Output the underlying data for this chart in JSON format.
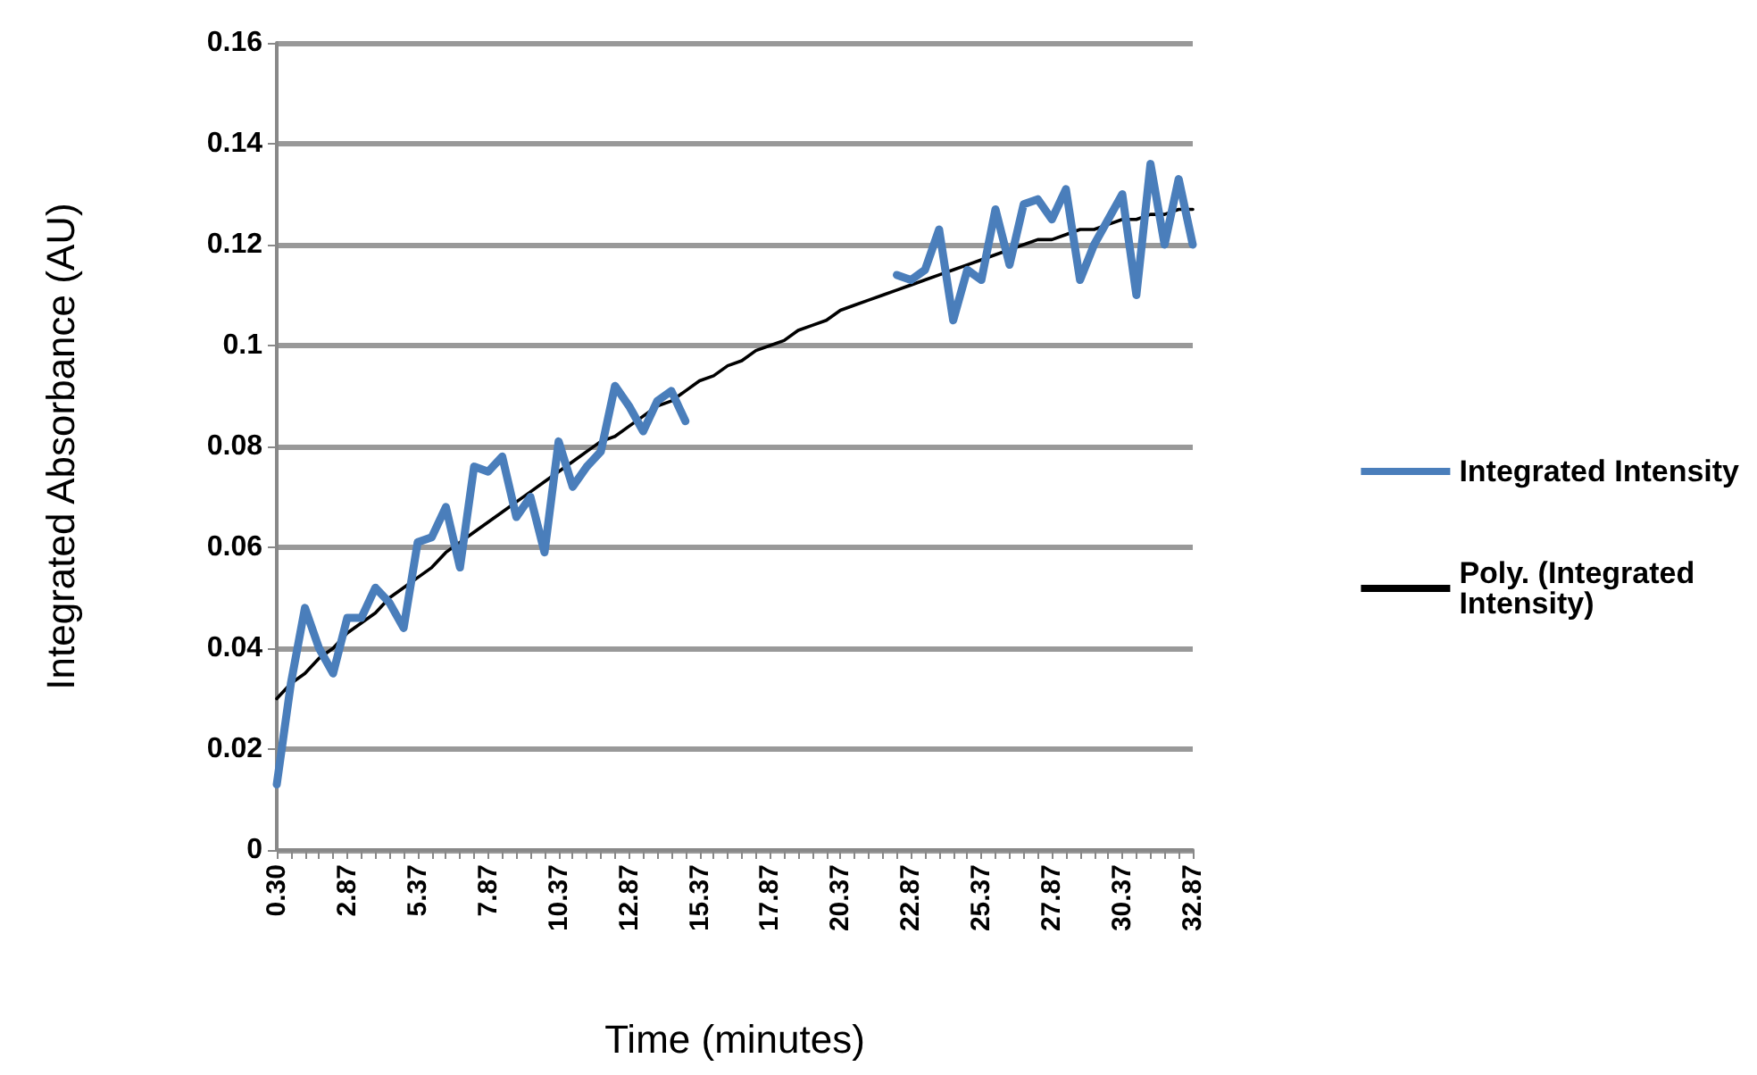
{
  "chart_data": {
    "type": "line",
    "xlabel": "Time (minutes)",
    "ylabel": "Integrated Absorbance (AU)",
    "categories": [
      "0.30",
      null,
      null,
      null,
      null,
      "2.87",
      null,
      null,
      null,
      null,
      "5.37",
      null,
      null,
      null,
      null,
      "7.87",
      null,
      null,
      null,
      null,
      "10.37",
      null,
      null,
      null,
      null,
      "12.87",
      null,
      null,
      null,
      null,
      "15.37",
      null,
      null,
      null,
      null,
      "17.87",
      null,
      null,
      null,
      null,
      "20.37",
      null,
      null,
      null,
      null,
      "22.87",
      null,
      null,
      null,
      null,
      "25.37",
      null,
      null,
      null,
      null,
      "27.87",
      null,
      null,
      null,
      null,
      "30.37",
      null,
      null,
      null,
      null,
      "32.87"
    ],
    "series": [
      {
        "name": "Integrated Intensity",
        "color": "#4a7ebb",
        "values": [
          0.013,
          0.033,
          0.048,
          0.04,
          0.035,
          0.046,
          0.046,
          0.052,
          0.049,
          0.044,
          0.061,
          0.062,
          0.068,
          0.056,
          0.076,
          0.075,
          0.078,
          0.066,
          0.07,
          0.059,
          0.081,
          0.072,
          0.076,
          0.079,
          0.092,
          0.088,
          0.083,
          0.089,
          0.091,
          0.085,
          null,
          null,
          null,
          null,
          null,
          null,
          null,
          null,
          null,
          null,
          null,
          null,
          null,
          null,
          0.114,
          0.113,
          0.115,
          0.123,
          0.105,
          0.115,
          0.113,
          0.127,
          0.116,
          0.128,
          0.129,
          0.125,
          0.131,
          0.113,
          0.12,
          0.125,
          0.13,
          0.11,
          0.136,
          0.12,
          0.133,
          0.12
        ]
      },
      {
        "name": "Poly. (Integrated Intensity)",
        "color": "#000000",
        "values": [
          0.03,
          0.033,
          0.035,
          0.038,
          0.04,
          0.043,
          0.045,
          0.047,
          0.05,
          0.052,
          0.054,
          0.056,
          0.059,
          0.061,
          0.063,
          0.065,
          0.067,
          0.069,
          0.071,
          0.073,
          0.075,
          0.077,
          0.079,
          0.081,
          0.082,
          0.084,
          0.086,
          0.088,
          0.089,
          0.091,
          0.093,
          0.094,
          0.096,
          0.097,
          0.099,
          0.1,
          0.101,
          0.103,
          0.104,
          0.105,
          0.107,
          0.108,
          0.109,
          0.11,
          0.111,
          0.112,
          0.113,
          0.114,
          0.115,
          0.116,
          0.117,
          0.118,
          0.119,
          0.12,
          0.121,
          0.121,
          0.122,
          0.123,
          0.123,
          0.124,
          0.125,
          0.125,
          0.126,
          0.126,
          0.127,
          0.127
        ]
      }
    ],
    "ylim": [
      0,
      0.16
    ],
    "yticks": [
      0,
      0.02,
      0.04,
      0.06,
      0.08,
      0.1,
      0.12,
      0.14,
      0.16
    ],
    "grid": "y",
    "legend": "right",
    "marker": "none",
    "line_style": "solid"
  }
}
